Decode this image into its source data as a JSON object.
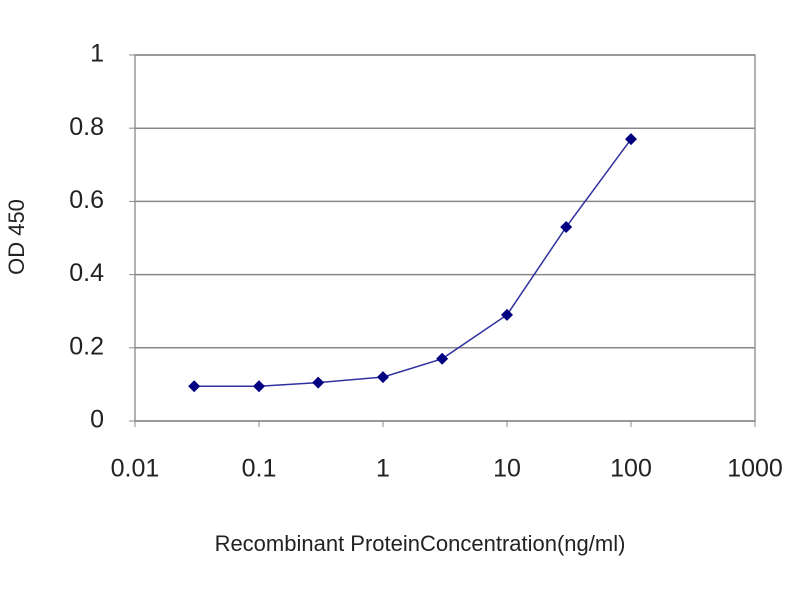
{
  "chart_data": {
    "type": "line",
    "x_label": "Recombinant ProteinConcentration(ng/ml)",
    "y_label": "OD 450",
    "x": [
      0.03,
      0.1,
      0.3,
      1,
      3,
      10,
      30,
      100
    ],
    "values": [
      0.095,
      0.095,
      0.105,
      0.12,
      0.17,
      0.29,
      0.53,
      0.77
    ],
    "color": "#000080",
    "xlim": [
      0.01,
      1000
    ],
    "xticks": [
      0.01,
      0.1,
      1,
      10,
      100,
      1000
    ],
    "x_log": true,
    "ylim": [
      0,
      1
    ],
    "yticks": [
      0,
      0.2,
      0.4,
      0.6,
      0.8,
      1
    ],
    "grid": true
  }
}
